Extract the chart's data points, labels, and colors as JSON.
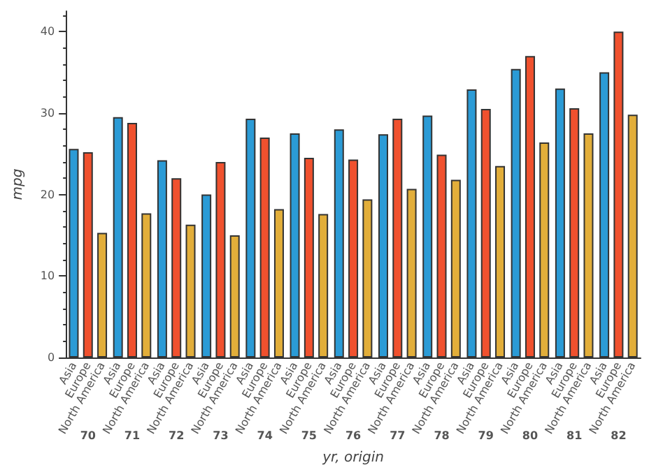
{
  "chart_data": {
    "type": "bar",
    "xlabel": "yr, origin",
    "ylabel": "mpg",
    "categories": [
      "70",
      "71",
      "72",
      "73",
      "74",
      "75",
      "76",
      "77",
      "78",
      "79",
      "80",
      "81",
      "82"
    ],
    "series": [
      {
        "name": "Asia",
        "color": "#2b9bd6",
        "values": [
          25.6,
          29.5,
          24.2,
          20.0,
          29.3,
          27.5,
          28.0,
          27.4,
          29.7,
          32.9,
          35.4,
          33.0,
          35.0
        ]
      },
      {
        "name": "Europe",
        "color": "#f0512e",
        "values": [
          25.2,
          28.8,
          22.0,
          24.0,
          27.0,
          24.5,
          24.3,
          29.3,
          24.9,
          30.5,
          37.0,
          30.6,
          40.0
        ]
      },
      {
        "name": "North America",
        "color": "#e2ae3a",
        "values": [
          15.3,
          17.7,
          16.3,
          15.0,
          18.2,
          17.6,
          19.4,
          20.7,
          21.8,
          23.5,
          26.4,
          27.5,
          29.8
        ]
      }
    ],
    "ylim": [
      0,
      42.5
    ],
    "yticks": [
      0,
      10,
      20,
      30,
      40
    ],
    "grid": false,
    "legend": false
  }
}
